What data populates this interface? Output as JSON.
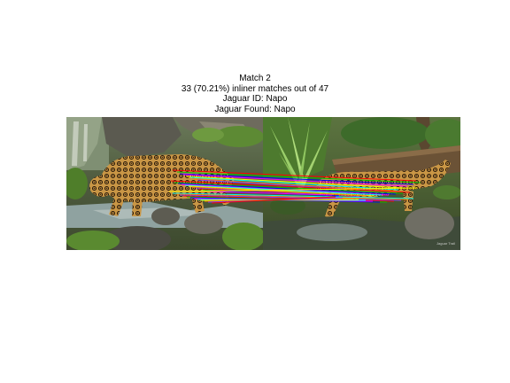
{
  "figure": {
    "title_lines": [
      "Match 2",
      "33 (70.21%) inliner matches out of 47",
      "Jaguar ID: Napo",
      "Jaguar Found: Napo"
    ]
  },
  "match": {
    "inlier_count": 33,
    "total_matches": 47,
    "inlier_ratio_percent": 70.21,
    "query_id": "Napo",
    "found_id": "Napo"
  },
  "image_panel": {
    "left_image": "jaguar-photo-query",
    "right_image": "jaguar-photo-match",
    "watermark_text": "Jaguar Trail"
  },
  "colors": {
    "background": "#ffffff",
    "text": "#000000",
    "match_lines": [
      "#ff0000",
      "#00c000",
      "#0000ff",
      "#ff00ff",
      "#ffff00",
      "#00ffff",
      "#8040ff",
      "#ff8000"
    ]
  }
}
